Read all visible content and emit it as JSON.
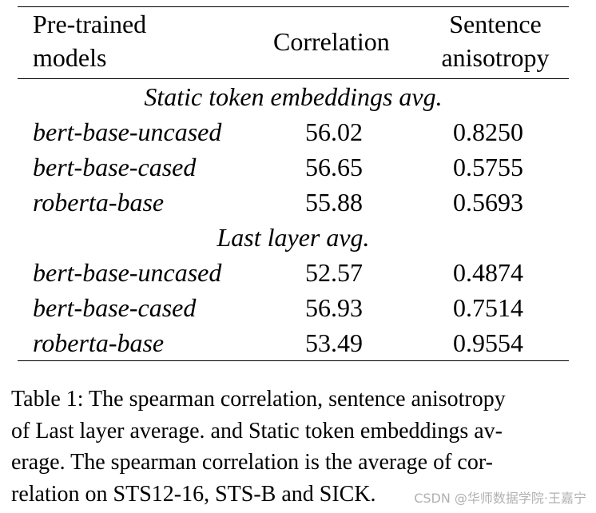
{
  "table": {
    "headers": {
      "models_line1": "Pre-trained",
      "models_line2": "models",
      "correlation": "Correlation",
      "anisotropy_line1": "Sentence",
      "anisotropy_line2": "anisotropy"
    },
    "sections": [
      {
        "title": "Static token embeddings avg.",
        "rows": [
          {
            "model": "bert-base-uncased",
            "correlation": "56.02",
            "anisotropy": "0.8250"
          },
          {
            "model": "bert-base-cased",
            "correlation": "56.65",
            "anisotropy": "0.5755"
          },
          {
            "model": "roberta-base",
            "correlation": "55.88",
            "anisotropy": "0.5693"
          }
        ]
      },
      {
        "title": "Last layer avg.",
        "rows": [
          {
            "model": "bert-base-uncased",
            "correlation": "52.57",
            "anisotropy": "0.4874"
          },
          {
            "model": "bert-base-cased",
            "correlation": "56.93",
            "anisotropy": "0.7514"
          },
          {
            "model": "roberta-base",
            "correlation": "53.49",
            "anisotropy": "0.9554"
          }
        ]
      }
    ]
  },
  "caption": {
    "lines": [
      "Table 1: The spearman correlation, sentence anisotropy",
      "of Last layer average. and Static token embeddings av-",
      "erage. The spearman correlation is the average of cor-",
      "relation on STS12-16, STS-B and SICK."
    ]
  },
  "watermark": "CSDN @华师数据学院·王嘉宁"
}
